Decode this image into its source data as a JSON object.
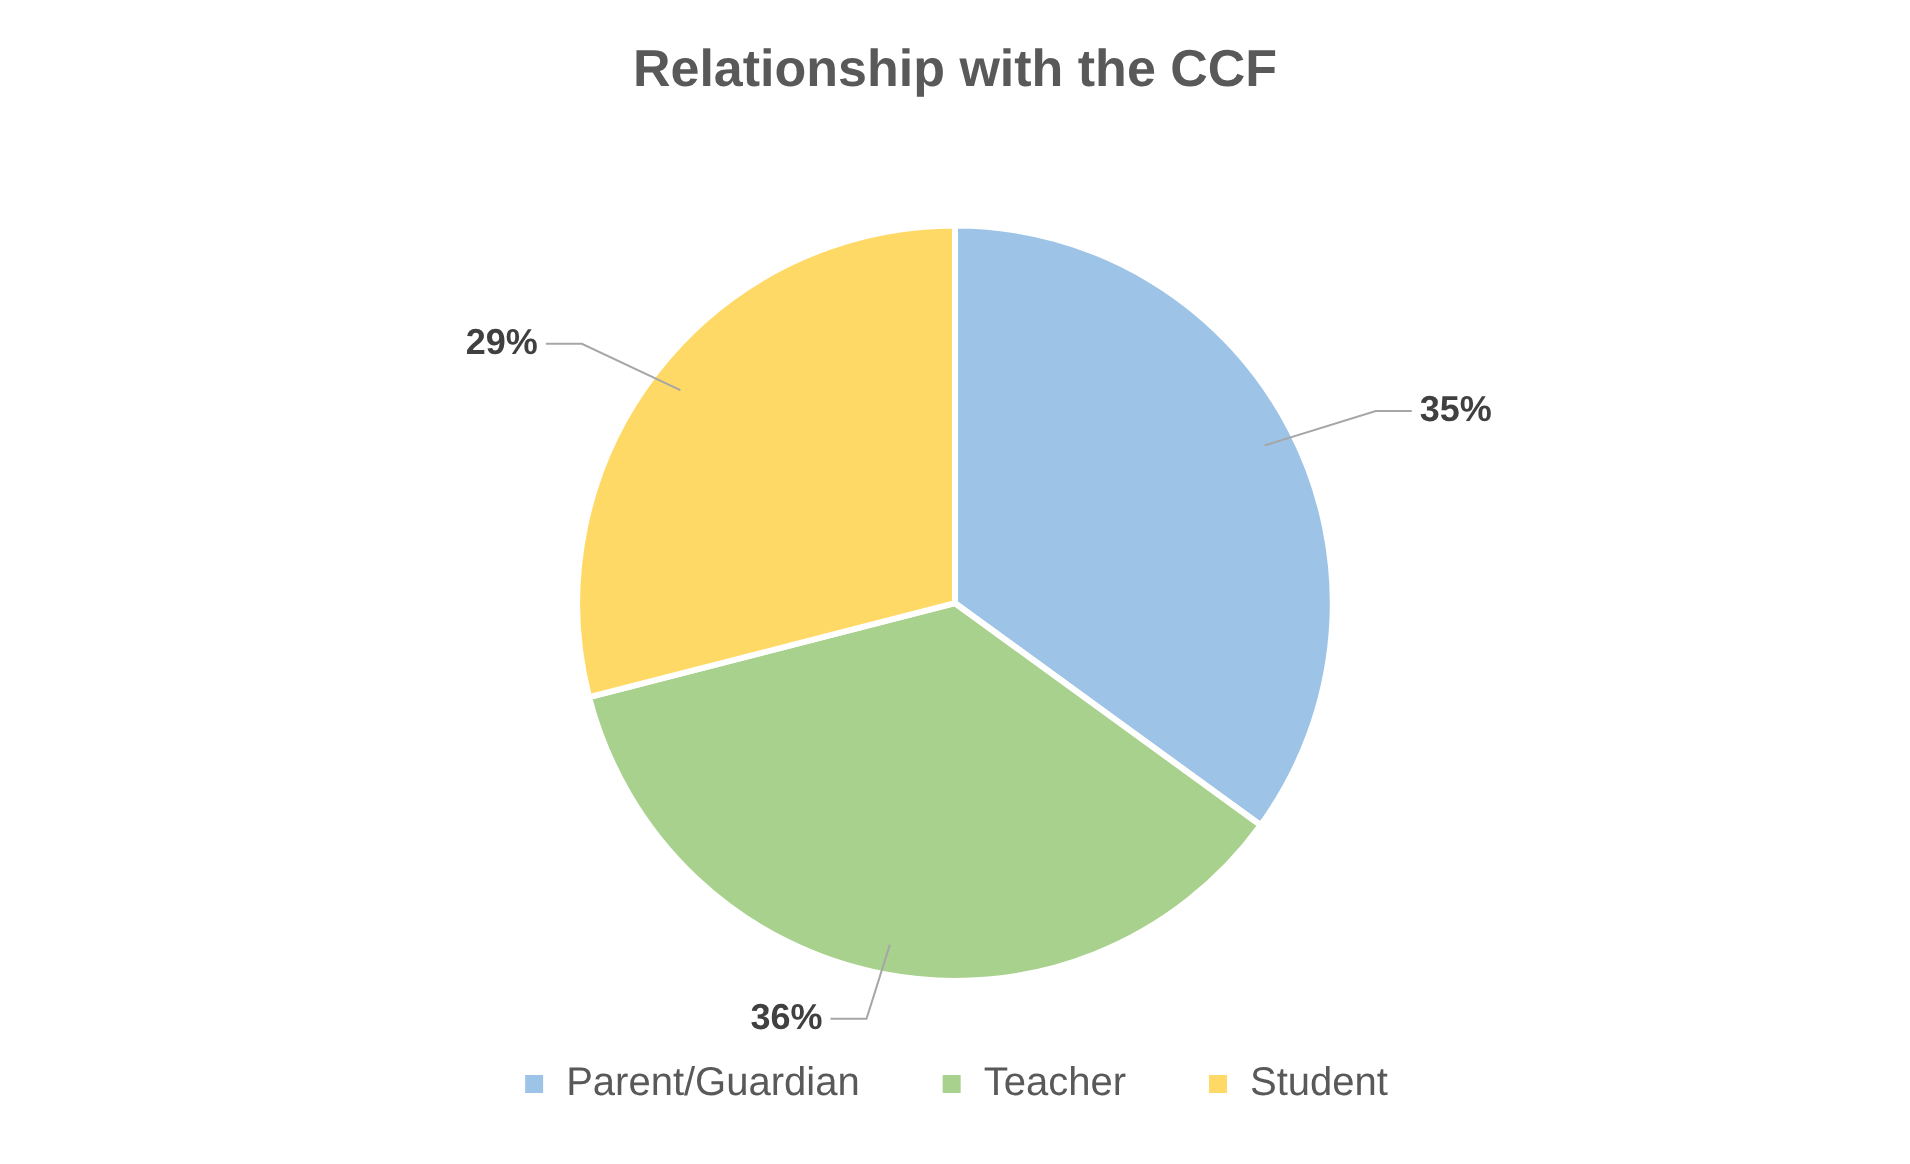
{
  "chart_data": {
    "type": "pie",
    "title": "Relationship with the CCF",
    "categories": [
      "Parent/Guardian",
      "Teacher",
      "Student"
    ],
    "values": [
      35,
      36,
      29
    ],
    "colors": [
      "#9dc3e6",
      "#a9d18e",
      "#ffd966"
    ],
    "value_labels": [
      "35%",
      "36%",
      "29%"
    ],
    "legend": "bottom"
  }
}
